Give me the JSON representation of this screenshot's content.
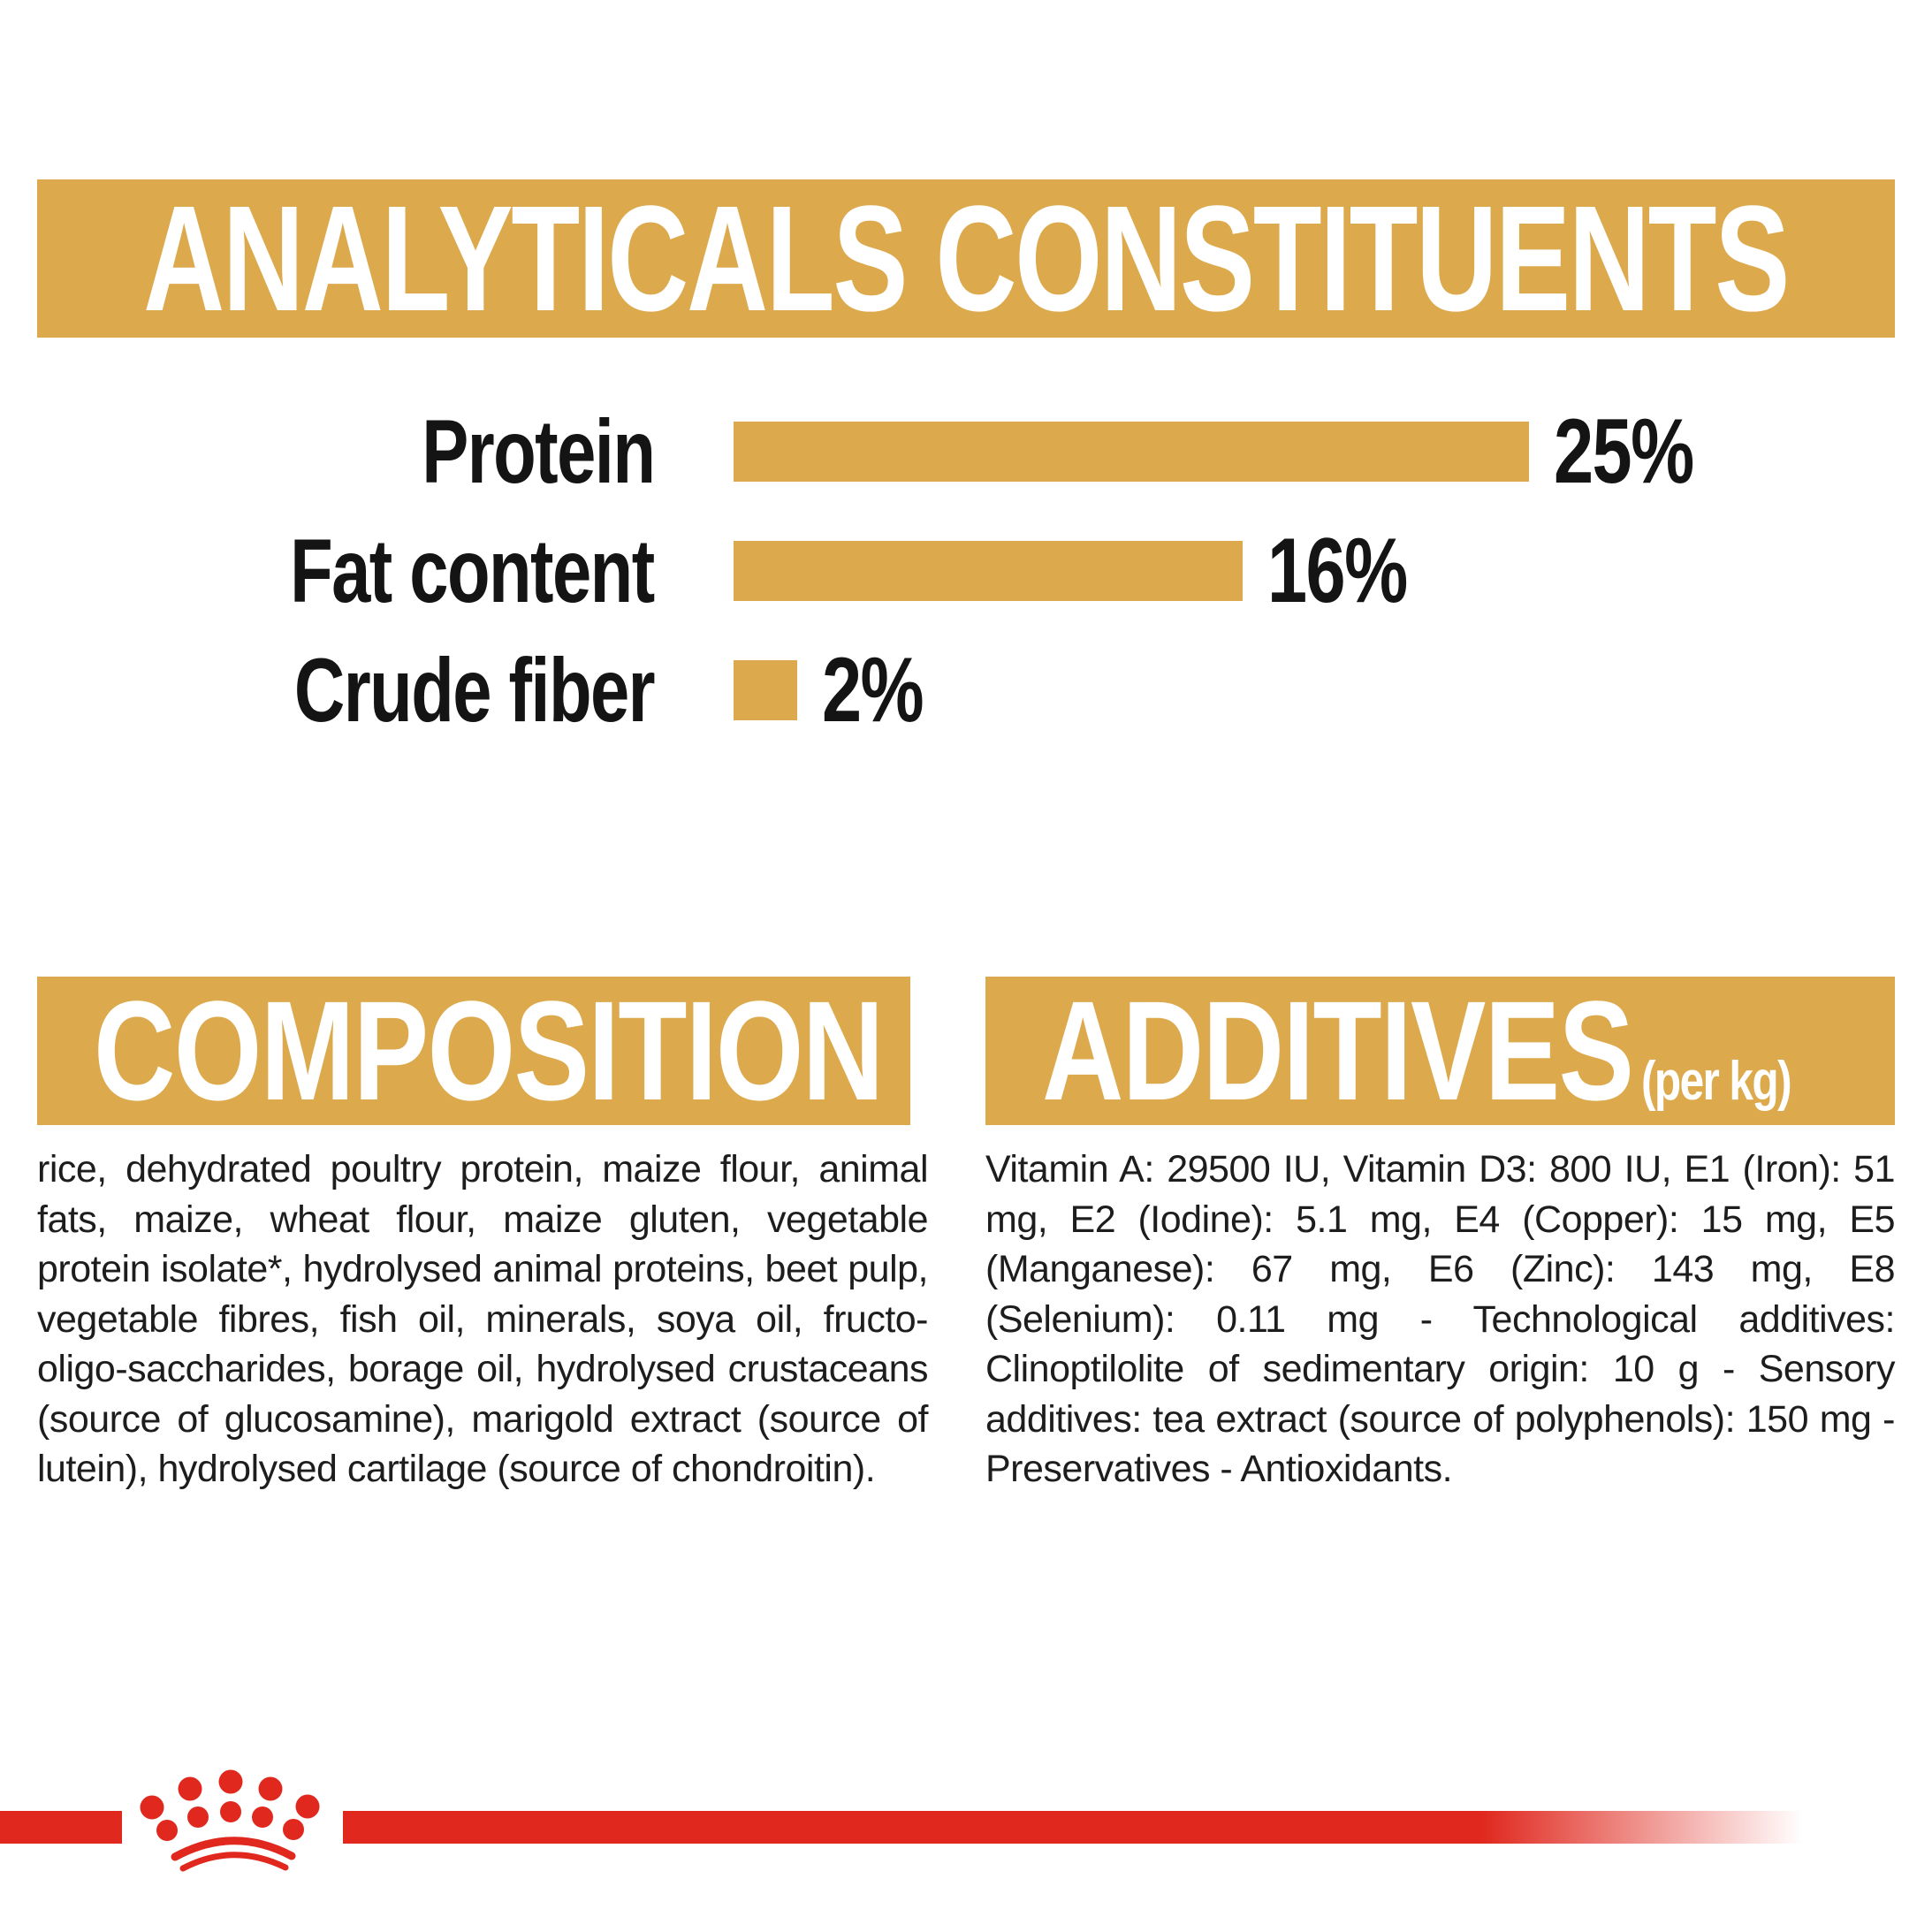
{
  "colors": {
    "gold": "#DDA94D",
    "red": "#E0281E",
    "text": "#1d1d1d",
    "white": "#ffffff"
  },
  "header": {
    "title": "ANALYTICALS CONSTITUENTS"
  },
  "chart_data": {
    "type": "bar",
    "orientation": "horizontal",
    "title": "ANALYTICALS CONSTITUENTS",
    "categories": [
      "Protein",
      "Fat content",
      "Crude fiber"
    ],
    "values": [
      25,
      16,
      2
    ],
    "value_labels": [
      "25%",
      "16%",
      "2%"
    ],
    "unit": "%",
    "xlim": [
      0,
      25
    ],
    "grid": false,
    "bar_color": "#DDA94D",
    "label_color": "#141414"
  },
  "composition": {
    "heading": "COMPOSITION",
    "body": "rice, dehydrated poultry protein, maize flour, animal fats, maize, wheat flour, maize gluten, vegetable protein isolate*, hydrolysed animal proteins, beet pulp, vegetable fibres, fish oil, minerals, soya oil, fructo-oligo-saccharides, borage oil, hydrolysed crustaceans (source of glucosamine), marigold extract (source of lutein), hydrolysed cartilage (source of chondroitin)."
  },
  "additives": {
    "heading": "ADDITIVES",
    "unit_suffix": "(per kg)",
    "body": "Vitamin A: 29500 IU, Vitamin D3: 800 IU, E1 (Iron): 51 mg, E2 (Iodine): 5.1 mg, E4 (Copper): 15 mg, E5 (Manganese): 67 mg, E6 (Zinc): 143 mg, E8 (Selenium): 0.11 mg - Technological additives: Clinoptilolite of sedimentary origin: 10 g - Sensory additives: tea extract (source of polyphenols): 150 mg - Preservatives - Antioxidants.",
    "logo": "royal-canin-crown"
  }
}
